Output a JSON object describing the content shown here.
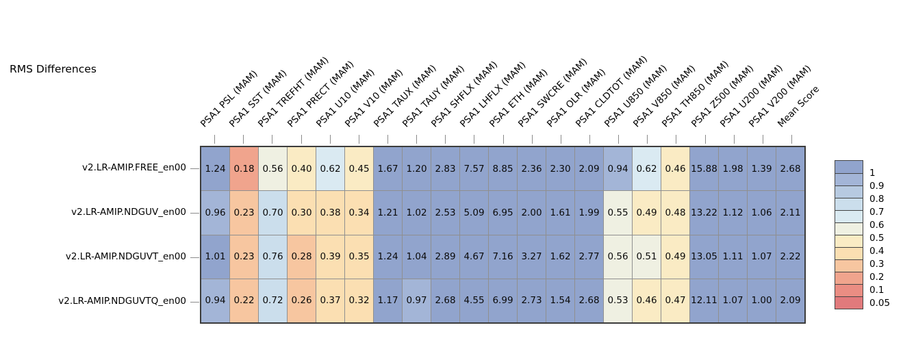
{
  "title": "RMS Differences",
  "chart_data": {
    "type": "heatmap",
    "title": "RMS Differences",
    "columns": [
      "PSA1 PSL (MAM)",
      "PSA1 SST (MAM)",
      "PSA1 TREFHT (MAM)",
      "PSA1 PRECT (MAM)",
      "PSA1 U10 (MAM)",
      "PSA1 V10 (MAM)",
      "PSA1 TAUX (MAM)",
      "PSA1 TAUY (MAM)",
      "PSA1 SHFLX (MAM)",
      "PSA1 LHFLX (MAM)",
      "PSA1 ETH (MAM)",
      "PSA1 SWCRE (MAM)",
      "PSA1 OLR (MAM)",
      "PSA1 CLDTOT (MAM)",
      "PSA1 U850 (MAM)",
      "PSA1 V850 (MAM)",
      "PSA1 TH850 (MAM)",
      "PSA1 Z500 (MAM)",
      "PSA1 U200 (MAM)",
      "PSA1 V200 (MAM)",
      "Mean Score"
    ],
    "rows": [
      "v2.LR-AMIP.FREE_en00",
      "v2.LR-AMIP.NDGUV_en00",
      "v2.LR-AMIP.NDGUVT_en00",
      "v2.LR-AMIP.NDGUVTQ_en00"
    ],
    "series": [
      {
        "name": "v2.LR-AMIP.FREE_en00",
        "values": [
          1.24,
          0.18,
          0.56,
          0.4,
          0.62,
          0.45,
          1.67,
          1.2,
          2.83,
          7.57,
          8.85,
          2.36,
          2.3,
          2.09,
          0.94,
          0.62,
          0.46,
          15.88,
          1.98,
          1.39,
          2.68
        ]
      },
      {
        "name": "v2.LR-AMIP.NDGUV_en00",
        "values": [
          0.96,
          0.23,
          0.7,
          0.3,
          0.38,
          0.34,
          1.21,
          1.02,
          2.53,
          5.09,
          6.95,
          2.0,
          1.61,
          1.99,
          0.55,
          0.49,
          0.48,
          13.22,
          1.12,
          1.06,
          2.11
        ]
      },
      {
        "name": "v2.LR-AMIP.NDGUVT_en00",
        "values": [
          1.01,
          0.23,
          0.76,
          0.28,
          0.39,
          0.35,
          1.24,
          1.04,
          2.89,
          4.67,
          7.16,
          3.27,
          1.62,
          2.77,
          0.56,
          0.51,
          0.49,
          13.05,
          1.11,
          1.07,
          2.22
        ]
      },
      {
        "name": "v2.LR-AMIP.NDGUVTQ_en00",
        "values": [
          0.94,
          0.22,
          0.72,
          0.26,
          0.37,
          0.32,
          1.17,
          0.97,
          2.68,
          4.55,
          6.99,
          2.73,
          1.54,
          2.68,
          0.53,
          0.46,
          0.47,
          12.11,
          1.07,
          1.0,
          2.09
        ]
      }
    ],
    "value_decimals": 2,
    "legend": {
      "position": "right",
      "tick_labels": [
        "1",
        "0.9",
        "0.8",
        "0.7",
        "0.6",
        "0.5",
        "0.4",
        "0.3",
        "0.2",
        "0.1",
        "0.05"
      ],
      "thresholds": [
        1,
        0.9,
        0.8,
        0.7,
        0.6,
        0.5,
        0.4,
        0.3,
        0.2,
        0.1,
        0.05
      ],
      "band_colors": [
        "#91A4CD",
        "#A3B5D7",
        "#B7CAE1",
        "#CBDEEC",
        "#DAEAF2",
        "#EFF0E2",
        "#FAEBC4",
        "#FBDFB2",
        "#F7C6A0",
        "#F0A48D",
        "#EA8D83",
        "#E17A7C"
      ]
    },
    "colors": {
      "grid_line": "#8f8f8f",
      "outer_border": "#3c3c3c",
      "tick_mark": "#8a8a8a",
      "text": "#000000"
    },
    "grid_on": true
  }
}
